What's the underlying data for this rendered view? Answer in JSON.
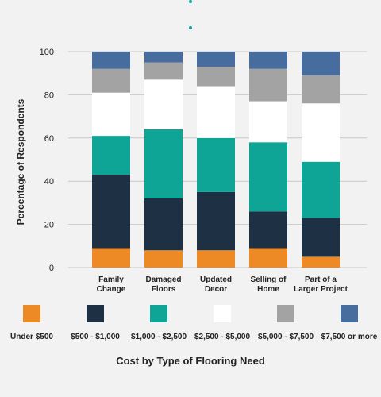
{
  "chart_data": {
    "type": "bar",
    "stacked": true,
    "categories": [
      [
        "Family",
        "Change"
      ],
      [
        "Damaged",
        "Floors"
      ],
      [
        "Updated",
        "Decor"
      ],
      [
        "Selling of",
        "Home"
      ],
      [
        "Part of a",
        "Larger Project"
      ]
    ],
    "series": [
      {
        "name": "Under $500",
        "color": "#ed8a25",
        "values": [
          9,
          8,
          8,
          9,
          5
        ]
      },
      {
        "name": "$500 - $1,000",
        "color": "#1d3044",
        "values": [
          34,
          24,
          27,
          17,
          18
        ]
      },
      {
        "name": "$1,000 - $2,500",
        "color": "#0ea597",
        "values": [
          18,
          32,
          25,
          32,
          26
        ]
      },
      {
        "name": "$2,500 - $5,000",
        "color": "#ffffff",
        "values": [
          20,
          23,
          24,
          19,
          27
        ]
      },
      {
        "name": "$5,000 - $7,500",
        "color": "#a3a3a3",
        "values": [
          11,
          8,
          9,
          15,
          13
        ]
      },
      {
        "name": "$7,500 or more",
        "color": "#466d9e",
        "values": [
          8,
          5,
          7,
          8,
          11
        ]
      }
    ],
    "ylabel": "Percentage of Respondents",
    "xlabel": "Cost by Type of Flooring Need",
    "ylim": [
      0,
      100
    ],
    "yticks": [
      0,
      20,
      40,
      60,
      80,
      100
    ],
    "grid": true,
    "legend_position": "bottom"
  }
}
